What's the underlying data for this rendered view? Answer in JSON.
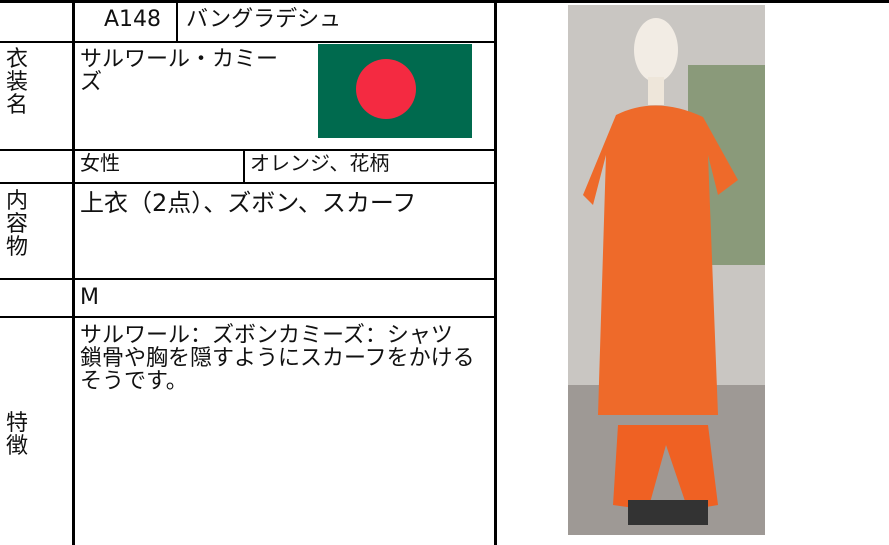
{
  "header": {
    "id": "A148",
    "country": "バングラデシュ"
  },
  "costume": {
    "label": "衣装名",
    "name": "サルワール・カミーズ"
  },
  "attributes": {
    "gender": "女性",
    "color": "オレンジ、花柄"
  },
  "contents": {
    "label": "内容物",
    "text": "上衣（2点）、ズボン、スカーフ"
  },
  "size": "M",
  "features": {
    "label": "特徴",
    "lines": [
      "サルワール：ズボンカミーズ：シャツ",
      "鎖骨や胸を隠すようにスカーフをかけるそうです。"
    ]
  }
}
